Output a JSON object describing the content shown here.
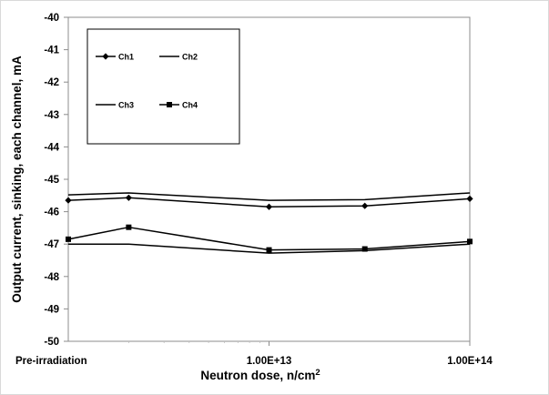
{
  "chart_data": {
    "type": "line",
    "ylabel": "Output current, sinking, each channel, mA",
    "xlabel": "Neutron dose, n/cm",
    "xlabel_sup": "2",
    "x_tick_labels": [
      "Pre-irradiation",
      "1.00E+13",
      "1.00E+14"
    ],
    "y_ticks": [
      -40,
      -41,
      -42,
      -43,
      -44,
      -45,
      -46,
      -47,
      -48,
      -49,
      -50
    ],
    "ylim": [
      -50,
      -40
    ],
    "x_points": [
      "Pre-irradiation",
      "2E+12",
      "1E+13",
      "3E+13",
      "1E+14"
    ],
    "series": [
      {
        "name": "Ch1",
        "marker": "diamond",
        "values": [
          -45.65,
          -45.57,
          -45.85,
          -45.82,
          -45.6
        ]
      },
      {
        "name": "Ch2",
        "marker": "none",
        "values": [
          -45.48,
          -45.42,
          -45.65,
          -45.63,
          -45.42
        ]
      },
      {
        "name": "Ch3",
        "marker": "none",
        "values": [
          -47.0,
          -47.0,
          -47.28,
          -47.2,
          -47.0
        ]
      },
      {
        "name": "Ch4",
        "marker": "square",
        "values": [
          -46.85,
          -46.48,
          -47.18,
          -47.15,
          -46.92
        ]
      }
    ],
    "legend_placement": "top-left",
    "grid": false
  }
}
